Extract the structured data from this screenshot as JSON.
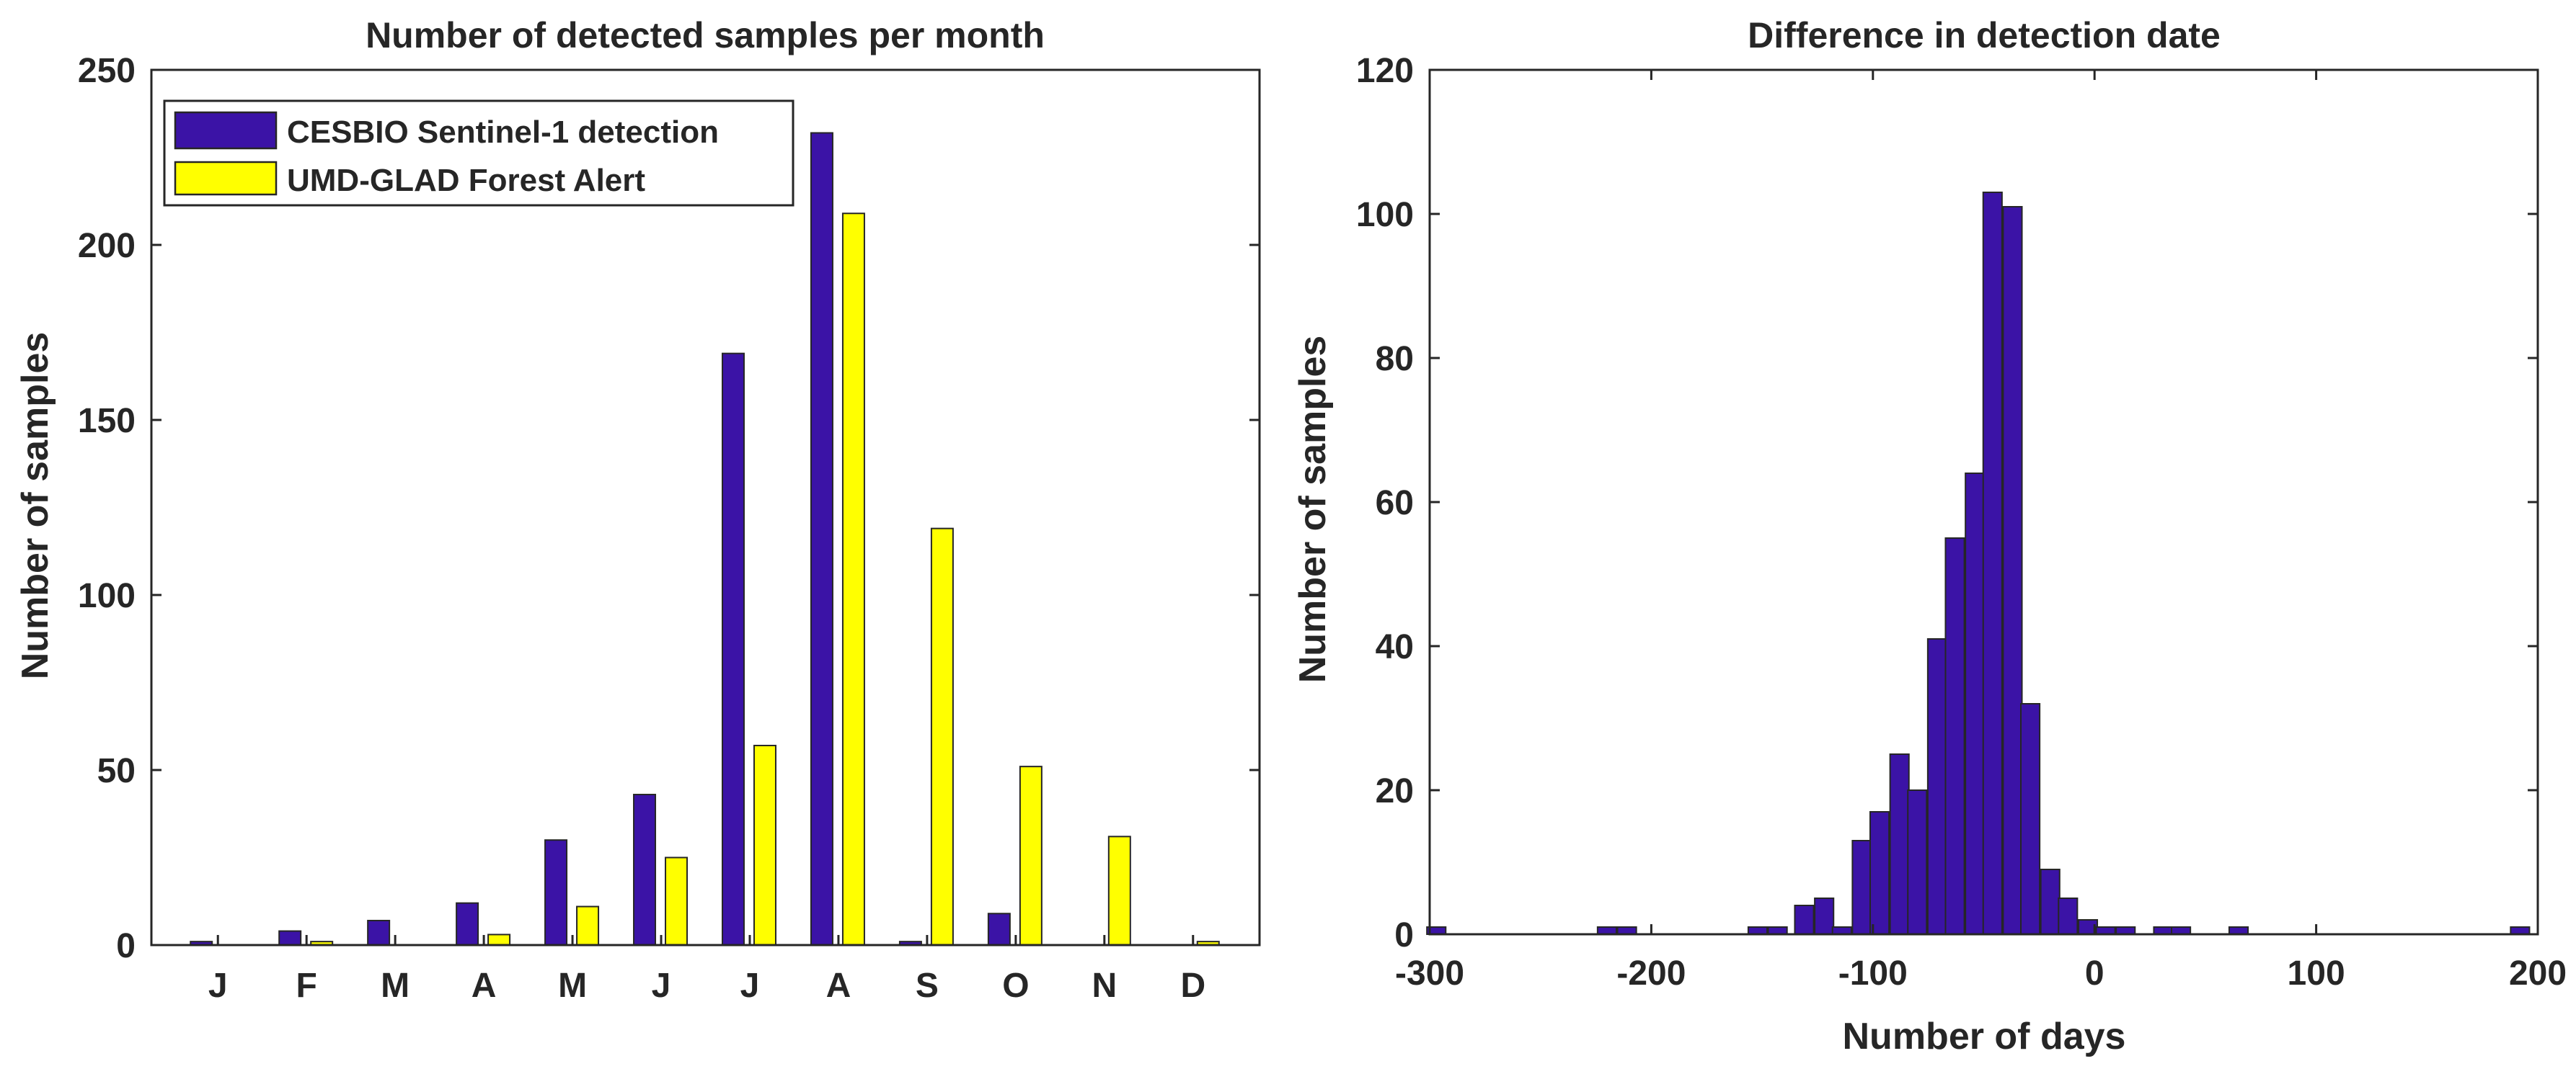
{
  "chart_data": [
    {
      "type": "bar",
      "title": "Number of detected samples per month",
      "xlabel": "",
      "ylabel": "Number of samples",
      "ylim": [
        0,
        250
      ],
      "yticks": [
        0,
        50,
        100,
        150,
        200,
        250
      ],
      "categories": [
        "J",
        "F",
        "M",
        "A",
        "M",
        "J",
        "J",
        "A",
        "S",
        "O",
        "N",
        "D"
      ],
      "legend_position": "top-left",
      "series": [
        {
          "name": "CESBIO Sentinel-1 detection",
          "color": "#3b13a6",
          "values": [
            1,
            4,
            7,
            12,
            30,
            43,
            169,
            232,
            1,
            9,
            0,
            0
          ]
        },
        {
          "name": "UMD-GLAD Forest Alert",
          "color": "#ffff00",
          "values": [
            0,
            1,
            0,
            3,
            11,
            25,
            57,
            209,
            119,
            51,
            31,
            1
          ]
        }
      ]
    },
    {
      "type": "bar",
      "title": "Difference in detection date",
      "xlabel": "Number of days",
      "ylabel": "Number of samples",
      "xlim": [
        -300,
        200
      ],
      "ylim": [
        0,
        120
      ],
      "xticks": [
        -300,
        -200,
        -100,
        0,
        100,
        200
      ],
      "yticks": [
        0,
        20,
        40,
        60,
        80,
        100,
        120
      ],
      "bin_width": 8.5,
      "color": "#3b13a6",
      "bins": [
        {
          "x": -297,
          "y": 1
        },
        {
          "x": -220,
          "y": 1
        },
        {
          "x": -211,
          "y": 1
        },
        {
          "x": -152,
          "y": 1
        },
        {
          "x": -143,
          "y": 1
        },
        {
          "x": -131,
          "y": 4
        },
        {
          "x": -122,
          "y": 5
        },
        {
          "x": -114,
          "y": 1
        },
        {
          "x": -105,
          "y": 13
        },
        {
          "x": -97,
          "y": 17
        },
        {
          "x": -88,
          "y": 25
        },
        {
          "x": -80,
          "y": 20
        },
        {
          "x": -71,
          "y": 41
        },
        {
          "x": -63,
          "y": 55
        },
        {
          "x": -54,
          "y": 64
        },
        {
          "x": -46,
          "y": 103
        },
        {
          "x": -37,
          "y": 101
        },
        {
          "x": -29,
          "y": 32
        },
        {
          "x": -20,
          "y": 9
        },
        {
          "x": -12,
          "y": 5
        },
        {
          "x": -3,
          "y": 2
        },
        {
          "x": 5,
          "y": 1
        },
        {
          "x": 14,
          "y": 1
        },
        {
          "x": 31,
          "y": 1
        },
        {
          "x": 39,
          "y": 1
        },
        {
          "x": 65,
          "y": 1
        },
        {
          "x": 192,
          "y": 1
        }
      ]
    }
  ]
}
